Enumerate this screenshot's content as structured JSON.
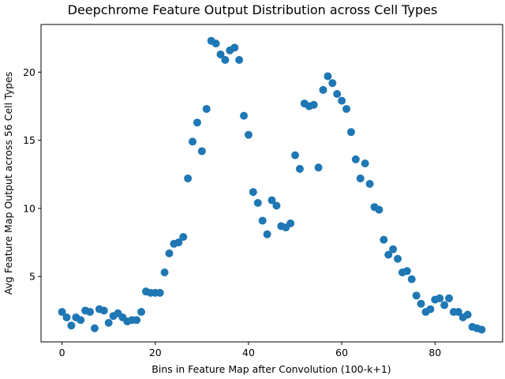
{
  "chart_data": {
    "type": "scatter",
    "title": "Deepchrome Feature Output Distribution across Cell Types",
    "xlabel": "Bins in Feature Map after Convolution (100-k+1)",
    "ylabel": "Avg Feature Map Output across 56 Cell Types",
    "xlim": [
      -4.5,
      94.5
    ],
    "ylim": [
      0.2,
      23.5
    ],
    "xticks": [
      0,
      20,
      40,
      60,
      80
    ],
    "yticks": [
      5,
      10,
      15,
      20
    ],
    "grid": false,
    "color": "#1f77b4",
    "x": [
      0,
      1,
      2,
      3,
      4,
      5,
      6,
      7,
      8,
      9,
      10,
      11,
      12,
      13,
      14,
      15,
      16,
      17,
      18,
      19,
      20,
      21,
      22,
      23,
      24,
      25,
      26,
      27,
      28,
      29,
      30,
      31,
      32,
      33,
      34,
      35,
      36,
      37,
      38,
      39,
      40,
      41,
      42,
      43,
      44,
      45,
      46,
      47,
      48,
      49,
      50,
      51,
      52,
      53,
      54,
      55,
      56,
      57,
      58,
      59,
      60,
      61,
      62,
      63,
      64,
      65,
      66,
      67,
      68,
      69,
      70,
      71,
      72,
      73,
      74,
      75,
      76,
      77,
      78,
      79,
      80,
      81,
      82,
      83,
      84,
      85,
      86,
      87,
      88,
      89,
      90
    ],
    "y": [
      2.4,
      2.0,
      1.4,
      2.0,
      1.8,
      2.5,
      2.4,
      1.2,
      2.6,
      2.5,
      1.6,
      2.1,
      2.3,
      2.0,
      1.7,
      1.8,
      1.8,
      2.4,
      3.9,
      3.8,
      3.8,
      3.8,
      5.3,
      6.7,
      7.4,
      7.5,
      7.9,
      12.2,
      14.9,
      16.3,
      14.2,
      17.3,
      22.3,
      22.1,
      21.3,
      20.9,
      21.6,
      21.8,
      20.9,
      16.8,
      15.4,
      11.2,
      10.4,
      9.1,
      8.1,
      10.6,
      10.2,
      8.7,
      8.6,
      8.9,
      13.9,
      12.9,
      17.7,
      17.5,
      17.6,
      13.0,
      18.7,
      19.7,
      19.2,
      18.4,
      17.9,
      17.3,
      15.6,
      13.6,
      12.2,
      13.3,
      11.8,
      10.1,
      9.9,
      7.7,
      6.6,
      7.0,
      6.3,
      5.3,
      5.4,
      4.8,
      3.6,
      3.0,
      2.4,
      2.6,
      3.3,
      3.4,
      2.9,
      3.4,
      2.4,
      2.4,
      2.0,
      2.2,
      1.3,
      1.2,
      1.1
    ]
  }
}
